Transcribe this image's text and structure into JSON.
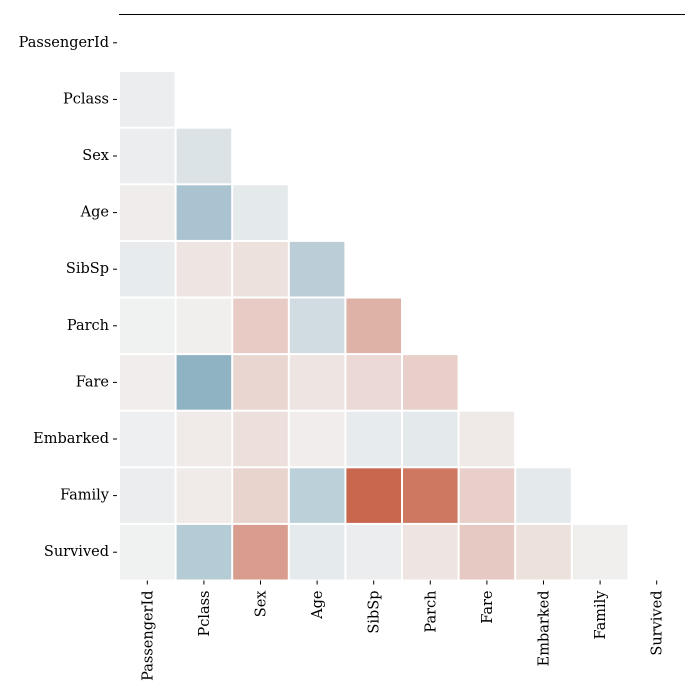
{
  "chart_data": {
    "type": "heatmap",
    "style": "lower-triangle correlation matrix, diverging blue-white-red colormap, no colorbar",
    "row_labels": [
      "PassengerId",
      "Pclass",
      "Sex",
      "Age",
      "SibSp",
      "Parch",
      "Fare",
      "Embarked",
      "Family",
      "Survived"
    ],
    "col_labels": [
      "PassengerId",
      "Pclass",
      "Sex",
      "Age",
      "SibSp",
      "Parch",
      "Fare",
      "Embarked",
      "Family",
      "Survived"
    ],
    "values": [
      [
        null,
        null,
        null,
        null,
        null,
        null,
        null,
        null,
        null,
        null
      ],
      [
        -0.04,
        null,
        null,
        null,
        null,
        null,
        null,
        null,
        null,
        null
      ],
      [
        -0.04,
        -0.13,
        null,
        null,
        null,
        null,
        null,
        null,
        null,
        null
      ],
      [
        0.04,
        -0.41,
        -0.08,
        null,
        null,
        null,
        null,
        null,
        null,
        null
      ],
      [
        -0.06,
        0.08,
        0.11,
        -0.31,
        null,
        null,
        null,
        null,
        null,
        null
      ],
      [
        -0.01,
        0.02,
        0.25,
        -0.19,
        0.41,
        null,
        null,
        null,
        null,
        null
      ],
      [
        0.03,
        -0.55,
        0.18,
        0.09,
        0.16,
        0.22,
        null,
        null,
        null,
        null
      ],
      [
        -0.03,
        0.05,
        0.12,
        0.03,
        -0.06,
        -0.08,
        0.06,
        null,
        null,
        null
      ],
      [
        -0.04,
        0.05,
        0.2,
        -0.3,
        0.89,
        0.78,
        0.22,
        -0.08,
        null,
        null
      ],
      [
        -0.01,
        -0.34,
        0.54,
        -0.07,
        -0.04,
        0.08,
        0.26,
        0.11,
        0.02,
        null
      ]
    ],
    "vmin": -1,
    "vmax": 1,
    "colors": {
      "negative": "#3f7f9f",
      "center": "#f2f2f2",
      "positive": "#c4553a"
    },
    "xlabel": "",
    "ylabel": ""
  }
}
